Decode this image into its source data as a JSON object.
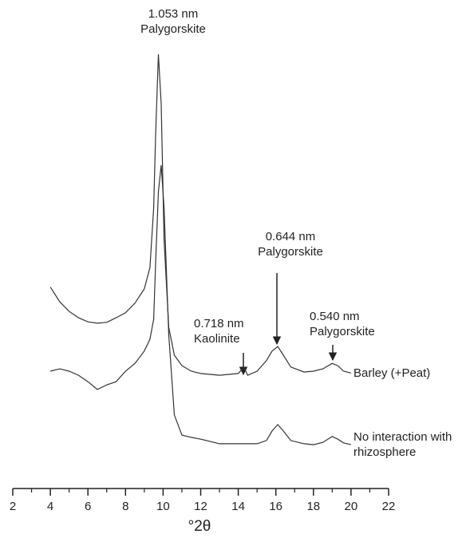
{
  "chart_data": {
    "type": "line",
    "x_label": "°2θ",
    "x": [
      4,
      4.5,
      5,
      5.5,
      6,
      6.5,
      7,
      7.5,
      8,
      8.5,
      9,
      9.3,
      9.5,
      9.6,
      9.75,
      9.9,
      10.05,
      10.3,
      10.6,
      11,
      11.5,
      12,
      13,
      14,
      14.3,
      14.5,
      15,
      15.5,
      15.8,
      16.1,
      16.4,
      16.8,
      17.5,
      18,
      18.5,
      19,
      19.3,
      19.6,
      20
    ],
    "series": [
      {
        "name": "Barley (+Peat)",
        "color": "#333333",
        "values": [
          44.1,
          40.9,
          38.8,
          37.4,
          36.5,
          36.2,
          36.4,
          37.4,
          38.5,
          40.6,
          43.7,
          48.4,
          61.5,
          77.3,
          95.1,
          84.3,
          54.5,
          35.3,
          29.2,
          26.9,
          25.7,
          25.2,
          24.8,
          25.2,
          26.6,
          24.8,
          25.7,
          28.0,
          30.1,
          31.1,
          29.2,
          26.6,
          25.5,
          25.7,
          26.2,
          27.4,
          26.9,
          25.7,
          25.3
        ]
      },
      {
        "name": "No interaction with rhizosphere",
        "color": "#333333",
        "values": [
          25.7,
          26.2,
          25.7,
          24.8,
          23.4,
          21.7,
          22.7,
          23.4,
          25.7,
          27.4,
          30.1,
          32.7,
          37.1,
          49.3,
          65.0,
          70.8,
          61.5,
          33.6,
          16.1,
          11.7,
          11.2,
          10.8,
          9.8,
          9.8,
          9.8,
          9.8,
          9.8,
          10.5,
          12.6,
          14.0,
          12.6,
          10.5,
          9.8,
          9.6,
          10.1,
          11.4,
          10.8,
          10.0,
          9.6
        ]
      }
    ],
    "annotations": [
      "1.053 nm Palygorskite",
      "0.644 nm Palygorskite",
      "0.718 nm Kaolinite",
      "0.540 nm Palygorskite"
    ],
    "xlim": [
      2,
      22
    ],
    "xticks": [
      2,
      4,
      6,
      8,
      10,
      12,
      14,
      16,
      18,
      20,
      22
    ],
    "xminorticks": [
      3,
      5,
      7,
      9,
      11,
      13,
      15,
      17,
      19,
      21
    ],
    "ylim": [
      0,
      100
    ]
  }
}
